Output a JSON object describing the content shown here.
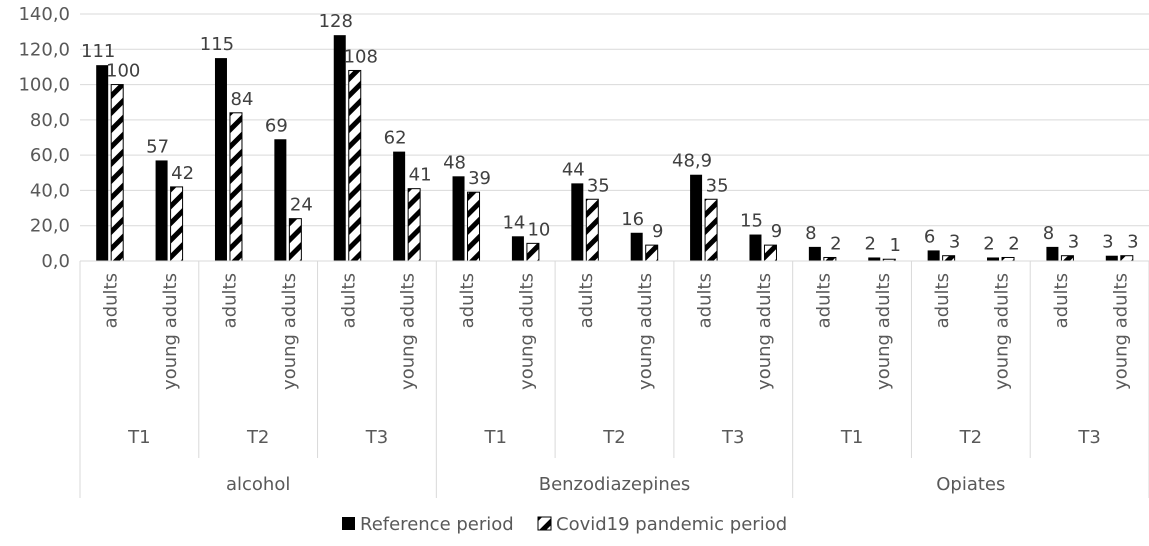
{
  "chart_data": {
    "type": "bar",
    "title": "",
    "xlabel": "",
    "ylabel": "",
    "ylim": [
      0,
      140
    ],
    "yticks": [
      "0,0",
      "20,0",
      "40,0",
      "60,0",
      "80,0",
      "100,0",
      "120,0",
      "140,0"
    ],
    "grid": true,
    "legend_position": "bottom",
    "groups": [
      {
        "substance": "alcohol",
        "periods": [
          {
            "period": "T1",
            "subgroups": [
              "adults",
              "young adults"
            ]
          },
          {
            "period": "T2",
            "subgroups": [
              "adults",
              "young adults"
            ]
          },
          {
            "period": "T3",
            "subgroups": [
              "adults",
              "young adults"
            ]
          }
        ]
      },
      {
        "substance": "Benzodiazepines",
        "periods": [
          {
            "period": "T1",
            "subgroups": [
              "adults",
              "young adults"
            ]
          },
          {
            "period": "T2",
            "subgroups": [
              "adults",
              "young adults"
            ]
          },
          {
            "period": "T3",
            "subgroups": [
              "adults",
              "young adults"
            ]
          }
        ]
      },
      {
        "substance": "Opiates",
        "periods": [
          {
            "period": "T1",
            "subgroups": [
              "adults",
              "young adults"
            ]
          },
          {
            "period": "T2",
            "subgroups": [
              "adults",
              "young adults"
            ]
          },
          {
            "period": "T3",
            "subgroups": [
              "adults",
              "young adults"
            ]
          }
        ]
      }
    ],
    "series": [
      {
        "name": "Reference period",
        "color": "#000000",
        "pattern": "solid",
        "values": [
          111,
          57,
          115,
          69,
          128,
          62,
          48,
          14,
          44,
          16,
          48.9,
          15,
          8,
          2,
          6,
          2,
          8,
          3
        ],
        "labels": [
          "111",
          "57",
          "115",
          "69",
          "128",
          "62",
          "48",
          "14",
          "44",
          "16",
          "48,9",
          "15",
          "8",
          "2",
          "6",
          "2",
          "8",
          "3"
        ]
      },
      {
        "name": "Covid19 pandemic period",
        "color": "#000000",
        "pattern": "diagonal-hatch",
        "values": [
          100,
          42,
          84,
          24,
          108,
          41,
          39,
          10,
          35,
          9,
          35,
          9,
          2,
          1,
          3,
          2,
          3,
          3
        ],
        "labels": [
          "100",
          "42",
          "84",
          "24",
          "108",
          "41",
          "39",
          "10",
          "35",
          "9",
          "35",
          "9",
          "2",
          "1",
          "3",
          "2",
          "3",
          "3"
        ]
      }
    ]
  }
}
